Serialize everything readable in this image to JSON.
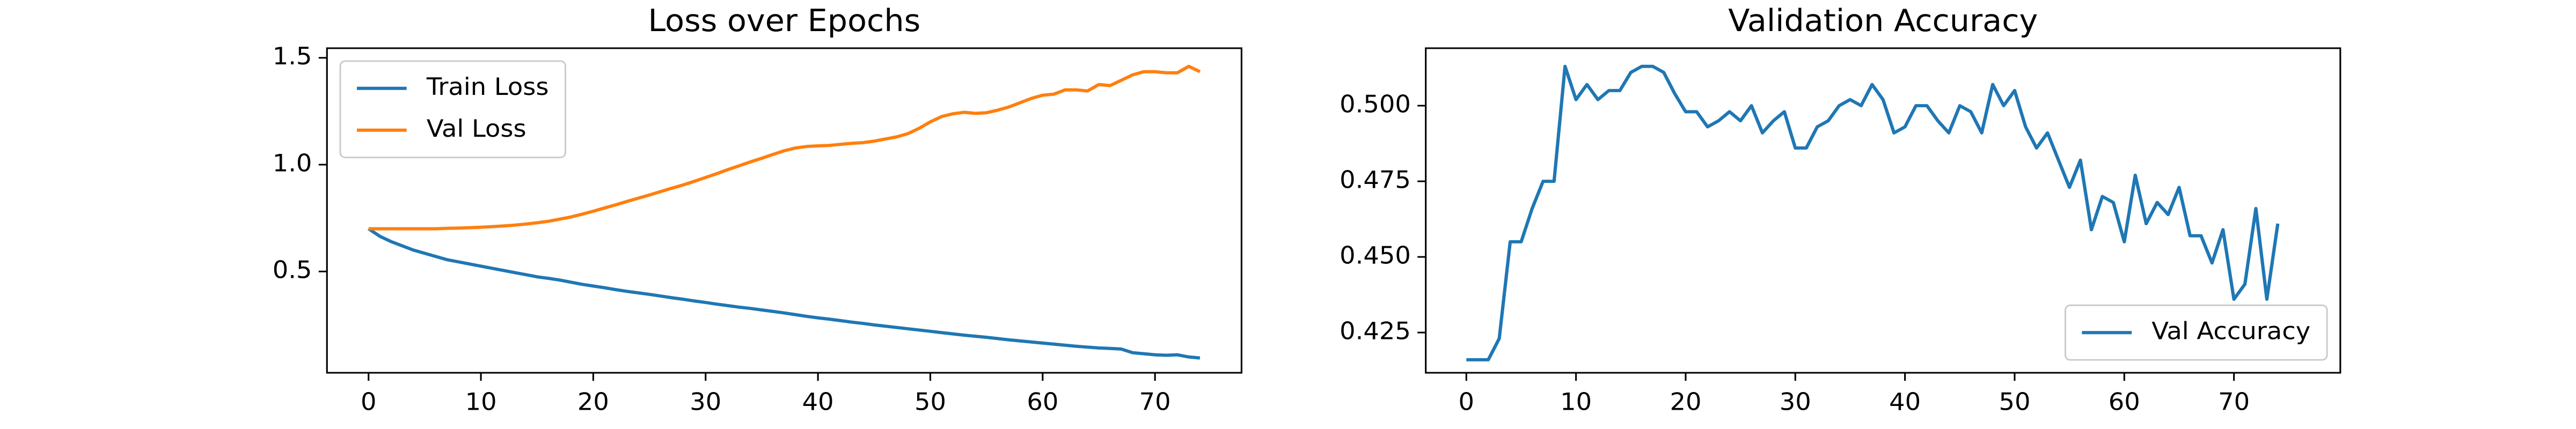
{
  "chart_data": [
    {
      "type": "line",
      "title": "Loss over Epochs",
      "x": [
        0,
        1,
        2,
        3,
        4,
        5,
        6,
        7,
        8,
        9,
        10,
        11,
        12,
        13,
        14,
        15,
        16,
        17,
        18,
        19,
        20,
        21,
        22,
        23,
        24,
        25,
        26,
        27,
        28,
        29,
        30,
        31,
        32,
        33,
        34,
        35,
        36,
        37,
        38,
        39,
        40,
        41,
        42,
        43,
        44,
        45,
        46,
        47,
        48,
        49,
        50,
        51,
        52,
        53,
        54,
        55,
        56,
        57,
        58,
        59,
        60,
        61,
        62,
        63,
        64,
        65,
        66,
        67,
        68,
        69,
        70,
        71,
        72,
        73,
        74
      ],
      "series": [
        {
          "name": "Train Loss",
          "color": "#1f77b4",
          "values": [
            0.7,
            0.665,
            0.64,
            0.62,
            0.6,
            0.585,
            0.57,
            0.555,
            0.545,
            0.535,
            0.525,
            0.515,
            0.505,
            0.495,
            0.485,
            0.475,
            0.468,
            0.46,
            0.45,
            0.44,
            0.432,
            0.424,
            0.415,
            0.407,
            0.4,
            0.393,
            0.385,
            0.377,
            0.37,
            0.362,
            0.355,
            0.347,
            0.34,
            0.333,
            0.327,
            0.32,
            0.313,
            0.306,
            0.298,
            0.29,
            0.283,
            0.277,
            0.27,
            0.263,
            0.257,
            0.25,
            0.244,
            0.238,
            0.232,
            0.226,
            0.22,
            0.214,
            0.208,
            0.202,
            0.197,
            0.192,
            0.186,
            0.18,
            0.175,
            0.17,
            0.165,
            0.16,
            0.155,
            0.15,
            0.146,
            0.142,
            0.14,
            0.137,
            0.12,
            0.115,
            0.11,
            0.108,
            0.11,
            0.1,
            0.095
          ]
        },
        {
          "name": "Val Loss",
          "color": "#ff7f0e",
          "values": [
            0.7,
            0.7,
            0.7,
            0.7,
            0.7,
            0.7,
            0.7,
            0.702,
            0.703,
            0.705,
            0.707,
            0.71,
            0.713,
            0.717,
            0.722,
            0.728,
            0.735,
            0.745,
            0.755,
            0.768,
            0.782,
            0.797,
            0.812,
            0.828,
            0.843,
            0.858,
            0.874,
            0.89,
            0.905,
            0.922,
            0.94,
            0.958,
            0.977,
            0.995,
            1.013,
            1.03,
            1.048,
            1.065,
            1.078,
            1.085,
            1.088,
            1.09,
            1.095,
            1.1,
            1.103,
            1.11,
            1.12,
            1.13,
            1.145,
            1.17,
            1.2,
            1.225,
            1.238,
            1.245,
            1.24,
            1.243,
            1.255,
            1.27,
            1.29,
            1.31,
            1.325,
            1.33,
            1.35,
            1.35,
            1.345,
            1.375,
            1.37,
            1.395,
            1.42,
            1.435,
            1.435,
            1.43,
            1.43,
            1.46,
            1.435
          ]
        }
      ],
      "xlim": [
        -3.7,
        77.7
      ],
      "xticks": [
        0,
        10,
        20,
        30,
        40,
        50,
        60,
        70
      ],
      "ylim": [
        0.026,
        1.545
      ],
      "yticks": [
        0.5,
        {
          "value": 1.0,
          "label": "1.0"
        },
        1.5
      ],
      "legend": "upper-left",
      "grid": false
    },
    {
      "type": "line",
      "title": "Validation Accuracy",
      "x": [
        0,
        1,
        2,
        3,
        4,
        5,
        6,
        7,
        8,
        9,
        10,
        11,
        12,
        13,
        14,
        15,
        16,
        17,
        18,
        19,
        20,
        21,
        22,
        23,
        24,
        25,
        26,
        27,
        28,
        29,
        30,
        31,
        32,
        33,
        34,
        35,
        36,
        37,
        38,
        39,
        40,
        41,
        42,
        43,
        44,
        45,
        46,
        47,
        48,
        49,
        50,
        51,
        52,
        53,
        54,
        55,
        56,
        57,
        58,
        59,
        60,
        61,
        62,
        63,
        64,
        65,
        66,
        67,
        68,
        69,
        70,
        71,
        72,
        73,
        74
      ],
      "series": [
        {
          "name": "Val Accuracy",
          "color": "#1f77b4",
          "values": [
            0.416,
            0.416,
            0.416,
            0.423,
            0.455,
            0.455,
            0.466,
            0.475,
            0.475,
            0.513,
            0.502,
            0.507,
            0.502,
            0.505,
            0.505,
            0.511,
            0.513,
            0.513,
            0.511,
            0.504,
            0.498,
            0.498,
            0.493,
            0.495,
            0.498,
            0.495,
            0.5,
            0.491,
            0.495,
            0.498,
            0.486,
            0.486,
            0.493,
            0.495,
            0.5,
            0.502,
            0.5,
            0.507,
            0.502,
            0.491,
            0.493,
            0.5,
            0.5,
            0.495,
            0.491,
            0.5,
            0.498,
            0.491,
            0.507,
            0.5,
            0.505,
            0.493,
            0.486,
            0.491,
            0.482,
            0.473,
            0.482,
            0.459,
            0.47,
            0.468,
            0.455,
            0.477,
            0.461,
            0.468,
            0.464,
            0.473,
            0.457,
            0.457,
            0.448,
            0.459,
            0.436,
            0.441,
            0.466,
            0.436,
            0.461
          ]
        }
      ],
      "xlim": [
        -3.7,
        79.7
      ],
      "xticks": [
        0,
        10,
        20,
        30,
        40,
        50,
        60,
        70
      ],
      "ylim": [
        0.4117,
        0.519
      ],
      "yticks": [
        0.425,
        {
          "value": 0.45,
          "label": "0.450"
        },
        0.475,
        {
          "value": 0.5,
          "label": "0.500"
        }
      ],
      "legend": "lower-right",
      "grid": false
    }
  ]
}
